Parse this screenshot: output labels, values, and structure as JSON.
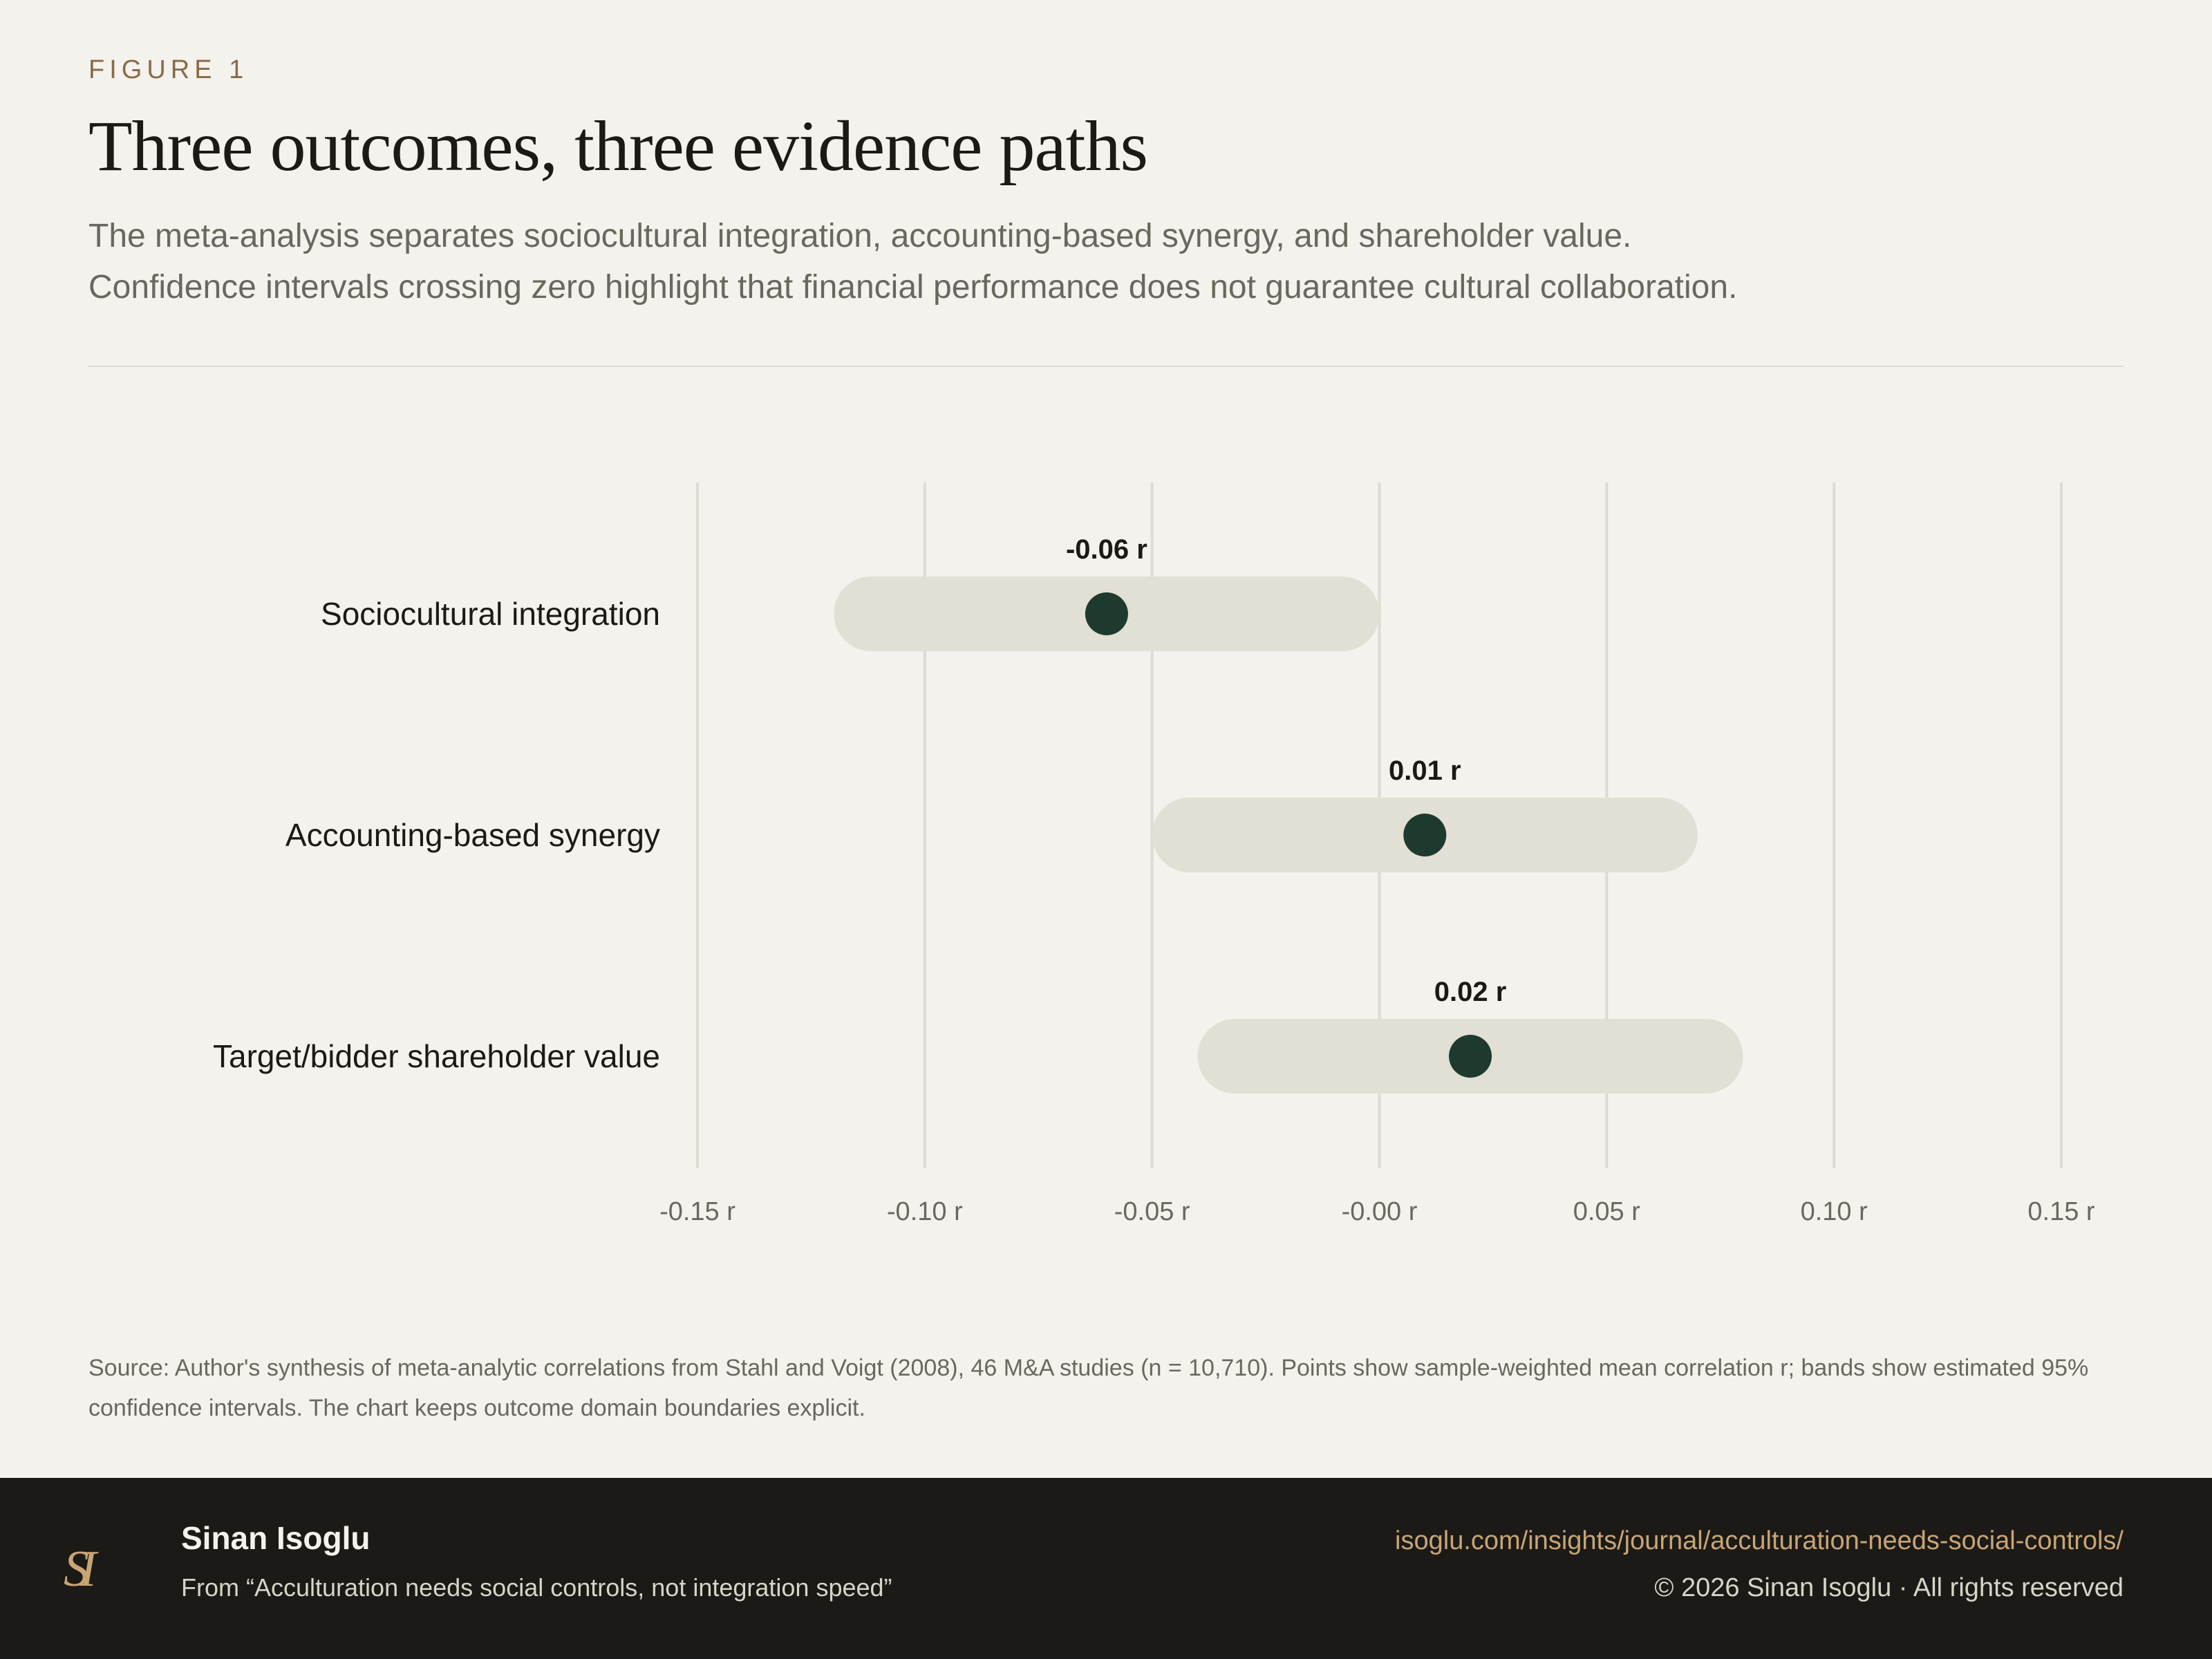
{
  "header": {
    "eyebrow": "FIGURE 1",
    "title": "Three outcomes, three evidence paths",
    "subtitle_line1": "The meta-analysis separates sociocultural integration, accounting-based synergy, and shareholder value.",
    "subtitle_line2": "Confidence intervals crossing zero highlight that financial performance does not guarantee cultural collaboration."
  },
  "chart_data": {
    "type": "forest",
    "categories": [
      "Sociocultural integration",
      "Accounting-based synergy",
      "Target/bidder shareholder value"
    ],
    "series": [
      {
        "values": [
          -0.06,
          0.01,
          0.02
        ],
        "ci_low": [
          -0.12,
          -0.05,
          -0.04
        ],
        "ci_high": [
          0.0,
          0.07,
          0.08
        ],
        "value_labels": [
          "-0.06 r",
          "0.01 r",
          "0.02 r"
        ]
      }
    ],
    "x_ticks": [
      -0.15,
      -0.1,
      -0.05,
      0.0,
      0.05,
      0.1,
      0.15
    ],
    "x_tick_labels": [
      "-0.15 r",
      "-0.10 r",
      "-0.05 r",
      "-0.00 r",
      "0.05 r",
      "0.10 r",
      "0.15 r"
    ],
    "xlim": [
      -0.15,
      0.15
    ],
    "grid": true,
    "colors": {
      "point": "#1e3a2f",
      "band": "#e2dfd5",
      "grid": "#dedbd2"
    }
  },
  "source": "Source: Author's synthesis of meta-analytic correlations from Stahl and Voigt (2008), 46 M&A studies (n = 10,710). Points show sample-weighted mean correlation r; bands show estimated 95% confidence intervals. The chart keeps outcome domain boundaries explicit.",
  "footer": {
    "logo_text": "SI",
    "author": "Sinan Isoglu",
    "from": "From “Acculturation needs social controls, not integration speed”",
    "url": "isoglu.com/insights/journal/acculturation-needs-social-controls/",
    "copyright": "© 2026 Sinan Isoglu · All rights reserved"
  }
}
